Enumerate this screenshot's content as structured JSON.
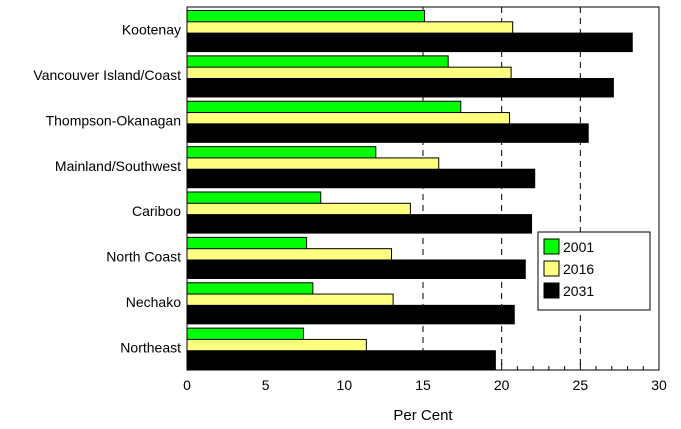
{
  "chart_data": {
    "type": "bar",
    "orientation": "horizontal",
    "categories": [
      "Kootenay",
      "Vancouver Island/Coast",
      "Thompson-Okanagan",
      "Mainland/Southwest",
      "Cariboo",
      "North Coast",
      "Nechako",
      "Northeast"
    ],
    "series": [
      {
        "name": "2001",
        "color": "#00ff00",
        "values": [
          15.1,
          16.6,
          17.4,
          12.0,
          8.5,
          7.6,
          8.0,
          7.4
        ]
      },
      {
        "name": "2016",
        "color": "#ffff80",
        "values": [
          20.7,
          20.6,
          20.5,
          16.0,
          14.2,
          13.0,
          13.1,
          11.4
        ]
      },
      {
        "name": "2031",
        "color": "#000000",
        "values": [
          28.3,
          27.1,
          25.5,
          22.1,
          21.9,
          21.5,
          20.8,
          19.6
        ]
      }
    ],
    "xlabel": "Per Cent",
    "ylabel": "",
    "xlim": [
      0,
      30
    ],
    "xticks": [
      0,
      5,
      10,
      15,
      20,
      25,
      30
    ],
    "grid": {
      "vertical_dashed_at": [
        15,
        20,
        25
      ]
    },
    "legend": "right"
  }
}
